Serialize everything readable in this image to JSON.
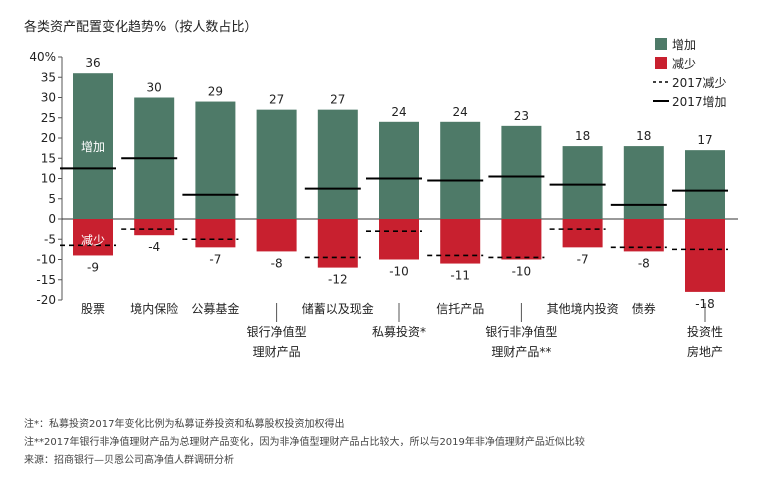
{
  "chart_data": {
    "type": "bar",
    "title": "各类资产配置变化趋势%（按人数占比）",
    "ylim": [
      -20,
      40
    ],
    "yticks": [
      40,
      35,
      30,
      25,
      20,
      15,
      10,
      5,
      0,
      -5,
      -10,
      -15,
      -20
    ],
    "ytick_labels": [
      "40%",
      "35",
      "30",
      "25",
      "20",
      "15",
      "10",
      "5",
      "0",
      "-5",
      "-10",
      "-15",
      "-20"
    ],
    "categories": [
      "股票",
      "境内保险",
      "公募基金",
      "银行净值型理财产品",
      "储蓄以及现金",
      "私募投资*",
      "信托产品",
      "银行非净值型理财产品**",
      "其他境内投资",
      "债券",
      "投资性房地产"
    ],
    "category_label_lines": [
      [
        "股票"
      ],
      [
        "境内保险"
      ],
      [
        "公募基金"
      ],
      [
        "银行净值型",
        "理财产品"
      ],
      [
        "储蓄以及现金"
      ],
      [
        "私募投资*"
      ],
      [
        "信托产品"
      ],
      [
        "银行非净值型",
        "理财产品**"
      ],
      [
        "其他境内投资"
      ],
      [
        "债券"
      ],
      [
        "投资性",
        "房地产"
      ]
    ],
    "label_row": [
      1,
      1,
      1,
      2,
      1,
      2,
      1,
      2,
      1,
      1,
      2
    ],
    "series": [
      {
        "name": "增加",
        "values": [
          36,
          30,
          29,
          27,
          27,
          24,
          24,
          23,
          18,
          18,
          17
        ],
        "color": "#4e7a68"
      },
      {
        "name": "减少",
        "values": [
          -9,
          -4,
          -7,
          -8,
          -12,
          -10,
          -11,
          -10,
          -7,
          -8,
          -18
        ],
        "color": "#c8202f"
      }
    ],
    "markers_2017_increase": [
      12.5,
      15,
      6,
      0,
      7.5,
      10,
      9.5,
      10.5,
      8.5,
      3.5,
      7
    ],
    "markers_2017_decrease": [
      -6.5,
      -2.5,
      -5,
      0,
      -9.5,
      -3,
      -9,
      -9.5,
      -2.5,
      -7,
      -7.5
    ],
    "bar_labels_top": [
      "36",
      "30",
      "29",
      "27",
      "27",
      "24",
      "24",
      "23",
      "18",
      "18",
      "17"
    ],
    "bar_labels_bottom": [
      "-9",
      "-4",
      "-7",
      "-8",
      "-12",
      "-10",
      "-11",
      "-10",
      "-7",
      "-8",
      "-18"
    ],
    "in_bar_labels": {
      "increase": "增加",
      "decrease": "减少"
    },
    "legend": [
      {
        "label": "增加",
        "kind": "swatch",
        "color": "#4e7a68"
      },
      {
        "label": "减少",
        "kind": "swatch",
        "color": "#c8202f"
      },
      {
        "label": "2017减少",
        "kind": "dashed"
      },
      {
        "label": "2017增加",
        "kind": "solid"
      }
    ],
    "legend_position": "top-right"
  },
  "notes": [
    "注*：私募投资2017年变化比例为私募证券投资和私募股权投资加权得出",
    "注**2017年银行非净值理财产品为总理财产品变化，因为非净值型理财产品占比较大，所以与2019年非净值理财产品近似比较",
    "来源：招商银行—贝恩公司高净值人群调研分析"
  ]
}
